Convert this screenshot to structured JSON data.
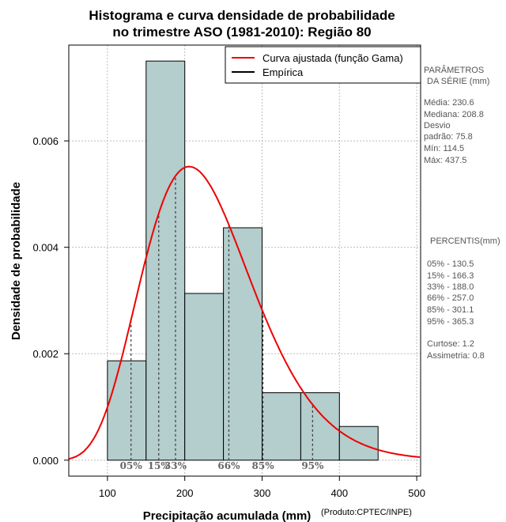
{
  "chart_data": {
    "type": "histogram",
    "title_line1": "Histograma e curva densidade de probabilidade",
    "title_line2": "no trimestre ASO (1981-2010): Região 80",
    "xlabel": "Precipitação acumulada (mm)",
    "ylabel": "Densidade de probabilidade",
    "credit": "(Produto:CPTEC/INPE)",
    "xlim": [
      50,
      505
    ],
    "ylim": [
      -0.0003,
      0.0078
    ],
    "x_ticks": [
      "100",
      "200",
      "300",
      "400",
      "500"
    ],
    "x_tick_values": [
      100,
      200,
      300,
      400,
      500
    ],
    "y_ticks": [
      "0.000",
      "0.002",
      "0.004",
      "0.006"
    ],
    "y_tick_values": [
      0,
      0.002,
      0.004,
      0.006
    ],
    "grid": true,
    "bins": [
      {
        "start": 100,
        "end": 150,
        "density": 0.001867
      },
      {
        "start": 150,
        "end": 200,
        "density": 0.0075
      },
      {
        "start": 200,
        "end": 250,
        "density": 0.003133
      },
      {
        "start": 250,
        "end": 300,
        "density": 0.004367
      },
      {
        "start": 300,
        "end": 350,
        "density": 0.001267
      },
      {
        "start": 350,
        "end": 400,
        "density": 0.001267
      },
      {
        "start": 400,
        "end": 450,
        "density": 0.000633
      }
    ],
    "gamma_fit": {
      "mean": 230.6,
      "sd": 75.8
    },
    "percentile_markers": [
      {
        "label": "05%",
        "value": 130.5
      },
      {
        "label": "15%",
        "value": 166.3
      },
      {
        "label": "33%",
        "value": 188.0
      },
      {
        "label": "66%",
        "value": 257.0
      },
      {
        "label": "85%",
        "value": 301.1
      },
      {
        "label": "95%",
        "value": 365.3
      }
    ],
    "legend": [
      {
        "label": "Curva ajustada (função Gama)",
        "color": "#ee0000"
      },
      {
        "label": "Empírica",
        "color": "#000000"
      }
    ],
    "bar_color": "#b4cdcd",
    "curve_color": "#ee0000"
  },
  "side_panel": {
    "params_title_1": "PARÂMETROS",
    "params_title_2": "DA SÉRIE (mm)",
    "media": "Média:  230.6",
    "mediana": "Mediana:  208.8",
    "desvio": "Desvio",
    "padrao": "padrão:  75.8",
    "min": "Mín:  114.5",
    "max": "Máx:  437.5",
    "percentis_title": "PERCENTIS(mm)",
    "percentis": [
      "05% -   130.5",
      "15% -   166.3",
      "33% -   188.0",
      "66% -   257.0",
      "85% -   301.1",
      "95% -   365.3"
    ],
    "curtose": "Curtose:  1.2",
    "assimetria": "Assimetria:  0.8"
  }
}
